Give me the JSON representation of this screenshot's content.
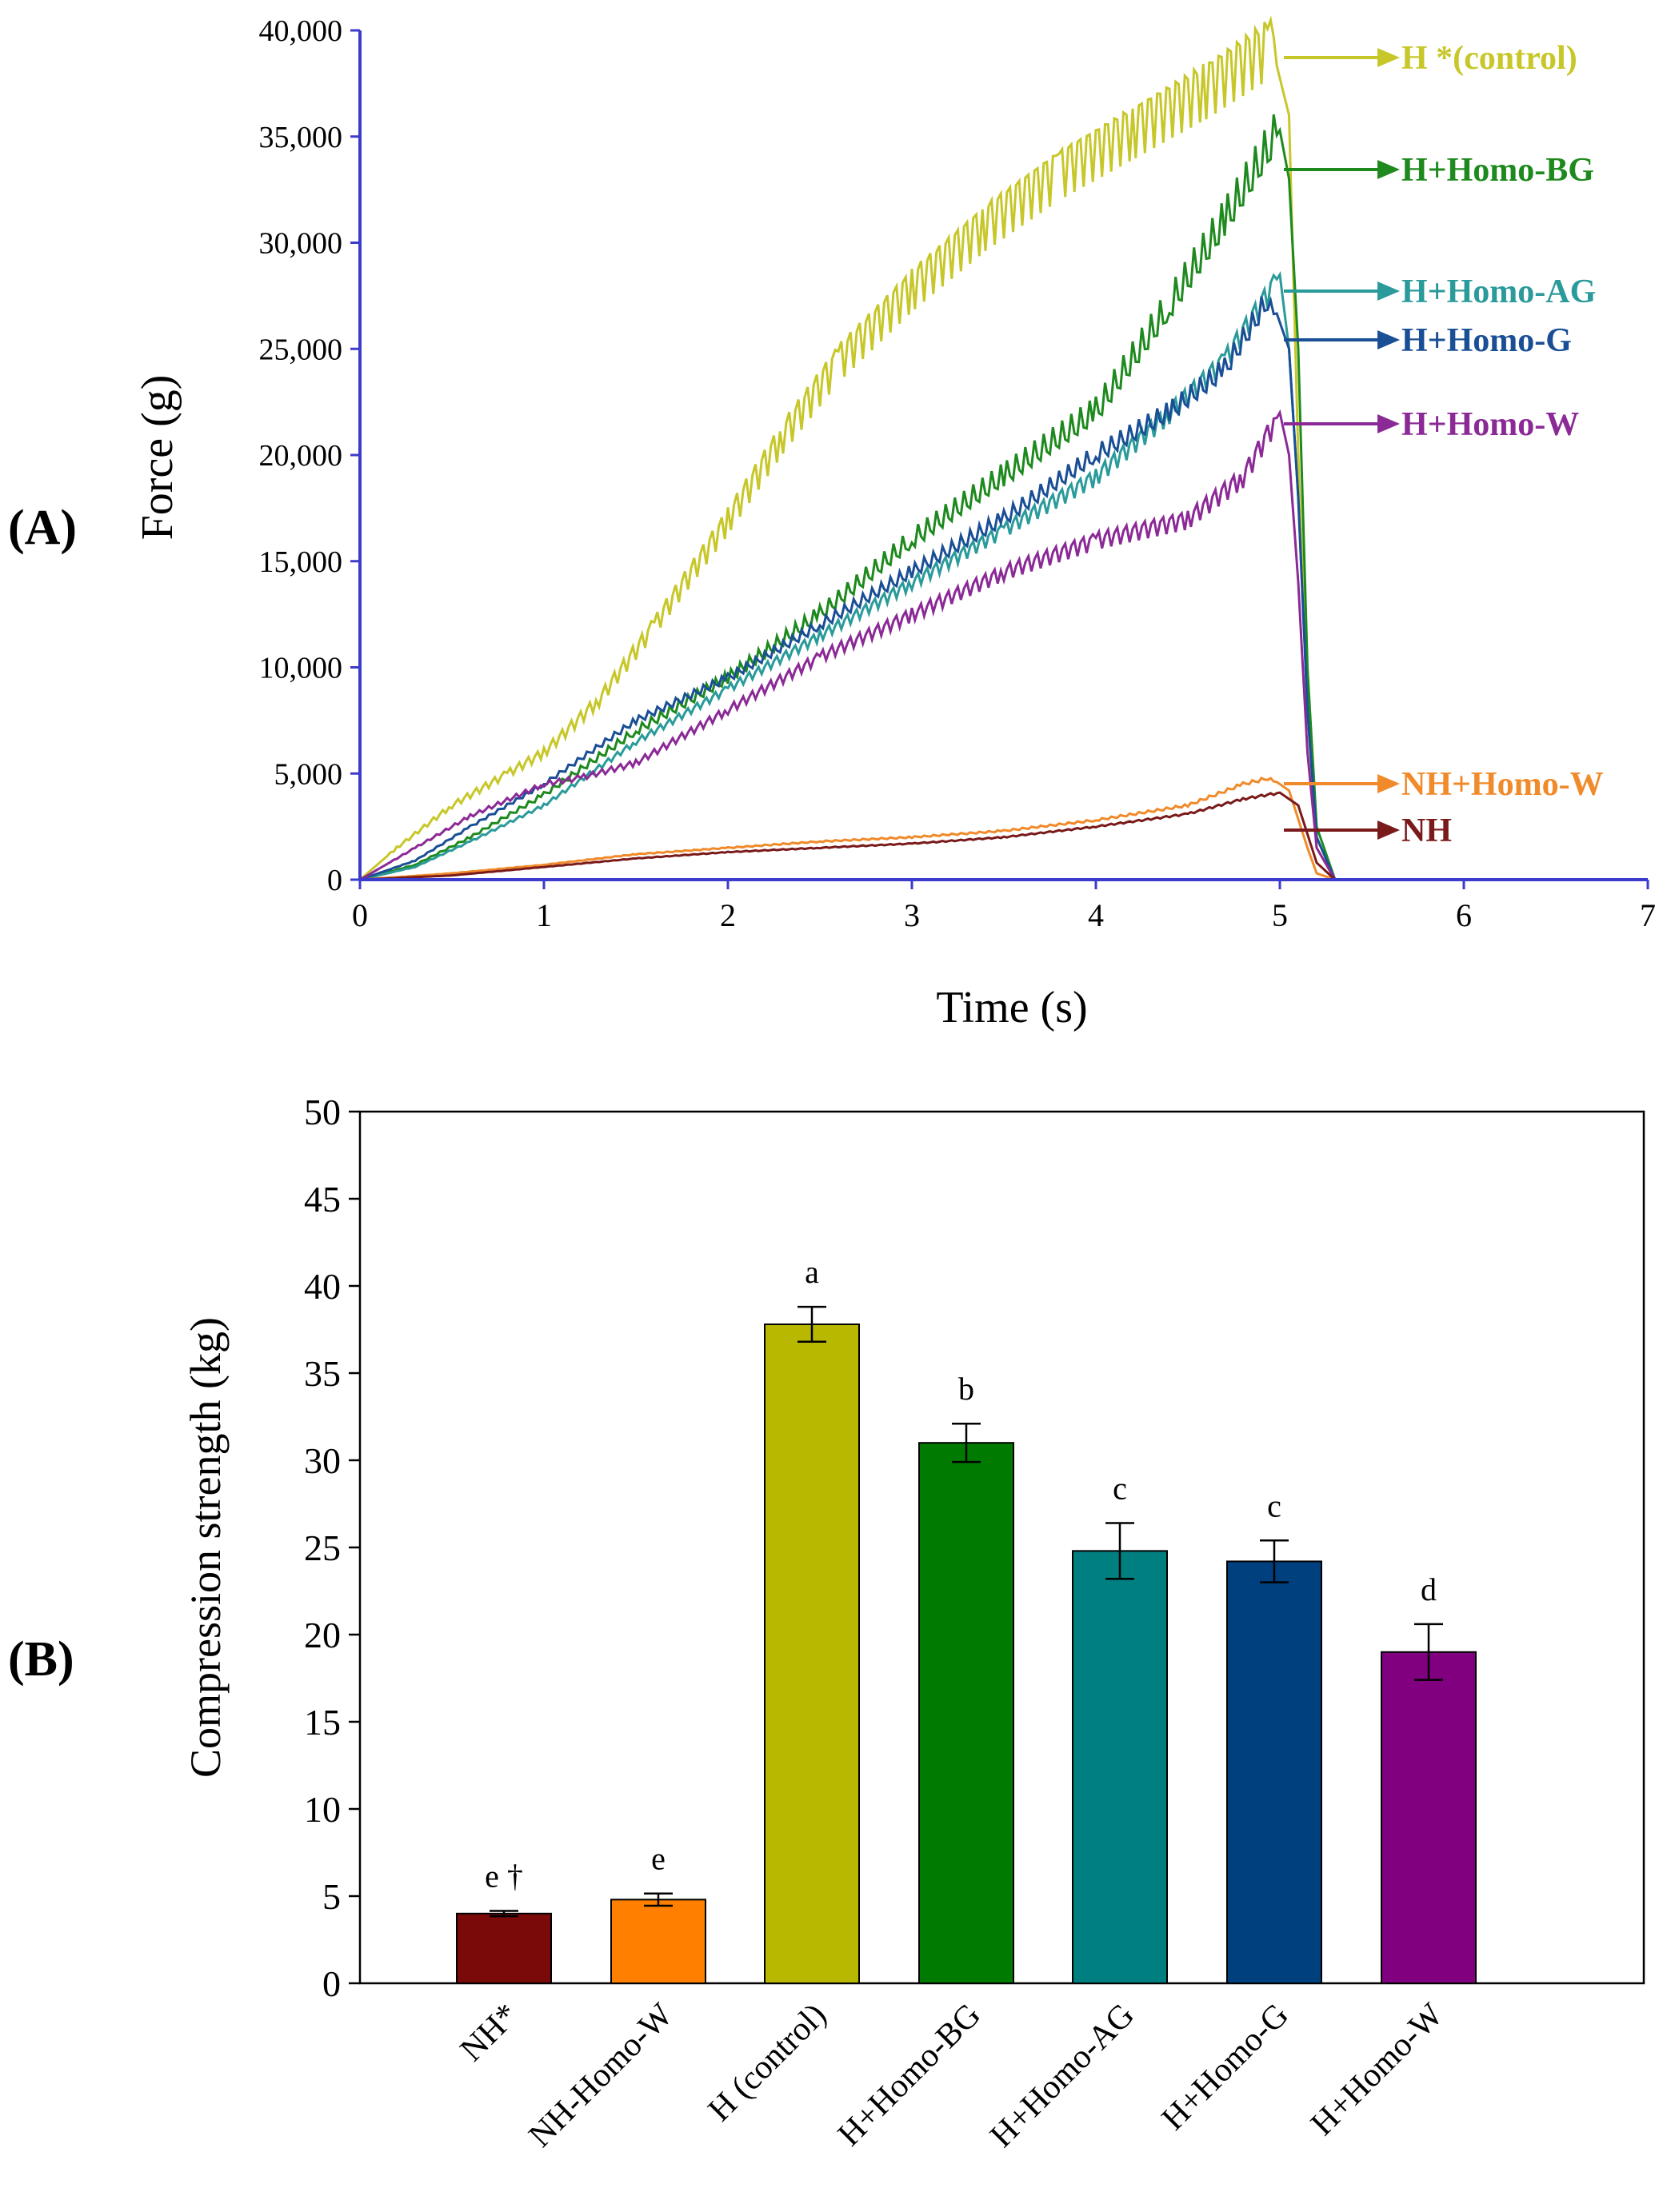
{
  "panel_labels": {
    "a": "(A)",
    "b": "(B)"
  },
  "chart_data": [
    {
      "type": "line",
      "panel": "(A)",
      "title": "",
      "xlabel": "Time (s)",
      "ylabel": "Force (g)",
      "xlim": [
        0,
        7
      ],
      "ylim": [
        0,
        40000
      ],
      "xticks": [
        0,
        1,
        2,
        3,
        4,
        5,
        6,
        7
      ],
      "xtick_labels": [
        "0",
        "1",
        "2",
        "3",
        "4",
        "5",
        "6",
        "7"
      ],
      "yticks": [
        0,
        5000,
        10000,
        15000,
        20000,
        25000,
        30000,
        35000,
        40000
      ],
      "ytick_labels": [
        "0",
        "5,000",
        "10,000",
        "15,000",
        "20,000",
        "25,000",
        "30,000",
        "35,000",
        "40,000"
      ],
      "series": [
        {
          "name": "H *(control)",
          "color": "#c7c72a",
          "x": [
            0,
            0.2,
            0.5,
            0.8,
            1.0,
            1.3,
            1.6,
            2.0,
            2.3,
            2.6,
            3.0,
            3.4,
            3.8,
            4.2,
            4.6,
            4.95,
            5.05,
            5.1,
            5.15,
            5.2,
            5.3,
            6.5
          ],
          "y": [
            0,
            1500,
            3500,
            5000,
            6000,
            8500,
            12000,
            17000,
            21000,
            24500,
            28000,
            31000,
            33500,
            35500,
            37500,
            39500,
            36000,
            20000,
            8000,
            1500,
            0,
            0
          ]
        },
        {
          "name": "H+Homo-BG",
          "color": "#1e8a1e",
          "x": [
            0,
            0.3,
            0.6,
            1.0,
            1.5,
            2.0,
            2.5,
            3.0,
            3.5,
            4.0,
            4.4,
            4.7,
            5.0,
            5.05,
            5.1,
            5.15,
            5.2,
            5.3,
            6.5
          ],
          "y": [
            0,
            700,
            2000,
            4000,
            7000,
            9500,
            12500,
            16000,
            19000,
            22000,
            27000,
            31000,
            35300,
            33000,
            25000,
            10000,
            2500,
            0,
            0
          ]
        },
        {
          "name": "H+Homo-AG",
          "color": "#2a9a9a",
          "x": [
            0,
            0.3,
            0.6,
            1.0,
            1.5,
            2.0,
            2.5,
            3.0,
            3.5,
            4.0,
            4.4,
            4.7,
            5.0,
            5.05,
            5.1,
            5.15,
            5.2,
            5.3,
            6.5
          ],
          "y": [
            0,
            600,
            1800,
            3500,
            6500,
            9000,
            11500,
            14000,
            16500,
            19000,
            22000,
            24500,
            28500,
            25000,
            18000,
            8000,
            2000,
            0,
            0
          ]
        },
        {
          "name": "H+Homo-G",
          "color": "#1a4f96",
          "x": [
            0,
            0.3,
            0.6,
            1.0,
            1.5,
            2.0,
            2.5,
            3.0,
            3.5,
            4.0,
            4.4,
            4.7,
            4.95,
            5.05,
            5.1,
            5.15,
            5.2,
            5.3,
            6.5
          ],
          "y": [
            0,
            900,
            2500,
            4500,
            7500,
            9500,
            12000,
            14500,
            17000,
            20000,
            22000,
            24000,
            27500,
            25000,
            18000,
            8000,
            2000,
            0,
            0
          ]
        },
        {
          "name": "H+Homo-W",
          "color": "#8b2a96",
          "x": [
            0,
            0.3,
            0.6,
            1.0,
            1.2,
            1.5,
            2.0,
            2.5,
            3.0,
            3.5,
            4.0,
            4.5,
            4.8,
            5.0,
            5.05,
            5.1,
            5.15,
            5.2,
            5.3,
            6.5
          ],
          "y": [
            0,
            1500,
            3000,
            4500,
            4800,
            5500,
            8000,
            10500,
            12500,
            14500,
            16000,
            17000,
            19000,
            22000,
            20000,
            14000,
            6000,
            1500,
            0,
            0
          ]
        },
        {
          "name": "NH+Homo-W",
          "color": "#f08a2a",
          "x": [
            0,
            0.5,
            1.0,
            1.5,
            2.0,
            2.5,
            3.0,
            3.5,
            4.0,
            4.5,
            4.8,
            4.95,
            5.05,
            5.15,
            5.2,
            5.3,
            6.5
          ],
          "y": [
            0,
            300,
            700,
            1200,
            1500,
            1800,
            2000,
            2300,
            2800,
            3500,
            4500,
            4800,
            4200,
            1500,
            300,
            0,
            0
          ]
        },
        {
          "name": "NH",
          "color": "#7a1a1a",
          "x": [
            0,
            0.5,
            1.0,
            1.5,
            2.0,
            2.5,
            3.0,
            3.5,
            4.0,
            4.5,
            4.8,
            5.0,
            5.1,
            5.2,
            5.3,
            6.5
          ],
          "y": [
            0,
            200,
            600,
            1000,
            1300,
            1500,
            1700,
            2000,
            2500,
            3100,
            3800,
            4100,
            3500,
            800,
            0,
            0
          ]
        }
      ],
      "legend": [
        "H *(control)",
        "H+Homo-BG",
        "H+Homo-AG",
        "H+Homo-G",
        "H+Homo-W",
        "NH+Homo-W",
        "NH"
      ],
      "legend_position": "right, arrows pointing to line ends"
    },
    {
      "type": "bar",
      "panel": "(B)",
      "title": "",
      "xlabel": "",
      "ylabel": "Compression strength (kg)",
      "ylim": [
        0,
        50
      ],
      "yticks": [
        0,
        5,
        10,
        15,
        20,
        25,
        30,
        35,
        40,
        45,
        50
      ],
      "ytick_labels": [
        "0",
        "5",
        "10",
        "15",
        "20",
        "25",
        "30",
        "35",
        "40",
        "45",
        "50"
      ],
      "categories": [
        "NH*",
        "NH-Homo-W",
        "H (control)",
        "H+Homo-BG",
        "H+Homo-AG",
        "H+Homo-G",
        "H+Homo-W"
      ],
      "values": [
        4.0,
        4.8,
        37.8,
        31.0,
        24.8,
        24.2,
        19.0
      ],
      "errors": [
        0.15,
        0.35,
        1.0,
        1.1,
        1.6,
        1.2,
        1.6
      ],
      "significance_labels": [
        "e †",
        "e",
        "a",
        "b",
        "c",
        "c",
        "d"
      ],
      "colors": [
        "#7a0a0a",
        "#ff8000",
        "#b8b800",
        "#007a00",
        "#007f80",
        "#00407f",
        "#800080"
      ]
    }
  ]
}
